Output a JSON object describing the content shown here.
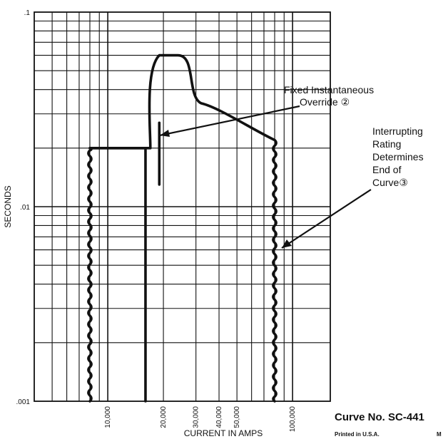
{
  "chart_data": {
    "type": "line",
    "title": "",
    "xlabel": "CURRENT IN AMPS",
    "ylabel": "SECONDS",
    "x_scale": "log",
    "y_scale": "log",
    "xlim": [
      4000,
      160000
    ],
    "ylim": [
      0.001,
      0.1
    ],
    "grid": true,
    "x_tick_labels": [
      {
        "value": 10000,
        "label": "10,000"
      },
      {
        "value": 20000,
        "label": "20,000"
      },
      {
        "value": 30000,
        "label": "30,000"
      },
      {
        "value": 40000,
        "label": "40,000"
      },
      {
        "value": 50000,
        "label": "50,000"
      },
      {
        "value": 100000,
        "label": "100,000"
      }
    ],
    "y_tick_labels": [
      {
        "value": 0.1,
        "label": ".1"
      },
      {
        "value": 0.01,
        "label": ".01"
      },
      {
        "value": 0.001,
        "label": ".001"
      }
    ],
    "series": [
      {
        "style": "thick",
        "x": [
          8000,
          8000,
          16000,
          17000,
          19000,
          24000,
          32000,
          50000,
          80000,
          80000
        ],
        "y": [
          0.001,
          0.02,
          0.02,
          0.02,
          0.06,
          0.06,
          0.034,
          0.026,
          0.022,
          0.001
        ]
      },
      {
        "style": "thick",
        "x": [
          8000,
          8000,
          15000
        ],
        "y": [
          0.02,
          0.001,
          0.001
        ]
      }
    ],
    "markers": [
      {
        "name": "fixed-instantaneous-override",
        "x": 19000,
        "y_range": [
          0.013,
          0.027
        ]
      }
    ],
    "annotations": [
      {
        "lines": [
          "Fixed Instantaneous",
          "Override ②"
        ]
      },
      {
        "lines": [
          "Interrupting",
          "Rating",
          "Determines",
          "End of",
          "Curve③"
        ]
      }
    ]
  },
  "footer": {
    "curve_number": "Curve No. SC-441",
    "printed": "Printed in U.S.A.",
    "extra": "M"
  }
}
